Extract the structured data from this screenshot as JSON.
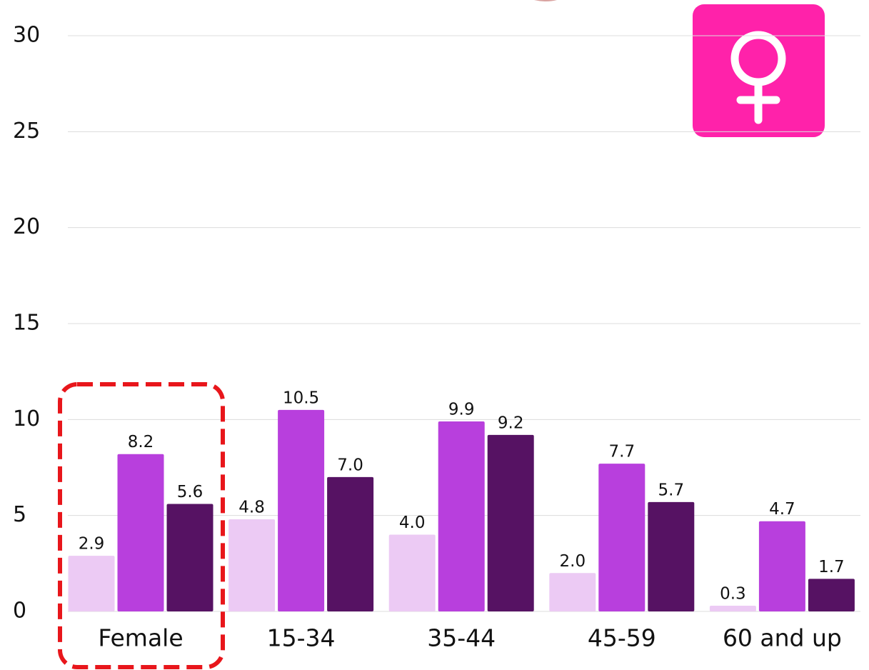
{
  "chart_data": {
    "type": "bar",
    "categories": [
      "Female",
      "15-34",
      "35-44",
      "45-59",
      "60 and up"
    ],
    "series": [
      {
        "color": "#eccaf4",
        "values": [
          2.9,
          4.8,
          4.0,
          2.0,
          0.3
        ],
        "value_labels": [
          "2.9",
          "4.8",
          "4.0",
          "2.0",
          "0.3"
        ]
      },
      {
        "color": "#b83fdd",
        "values": [
          8.2,
          10.5,
          9.9,
          7.7,
          4.7
        ],
        "value_labels": [
          "8.2",
          "10.5",
          "9.9",
          "7.7",
          "4.7"
        ]
      },
      {
        "color": "#561263",
        "values": [
          5.6,
          7.0,
          9.2,
          5.7,
          1.7
        ],
        "value_labels": [
          "5.6",
          "7.0",
          "9.2",
          "5.7",
          "1.7"
        ]
      }
    ],
    "ylim": [
      0,
      30
    ],
    "yticks": [
      0,
      5,
      10,
      15,
      20,
      25,
      30
    ],
    "grid": true
  }
}
